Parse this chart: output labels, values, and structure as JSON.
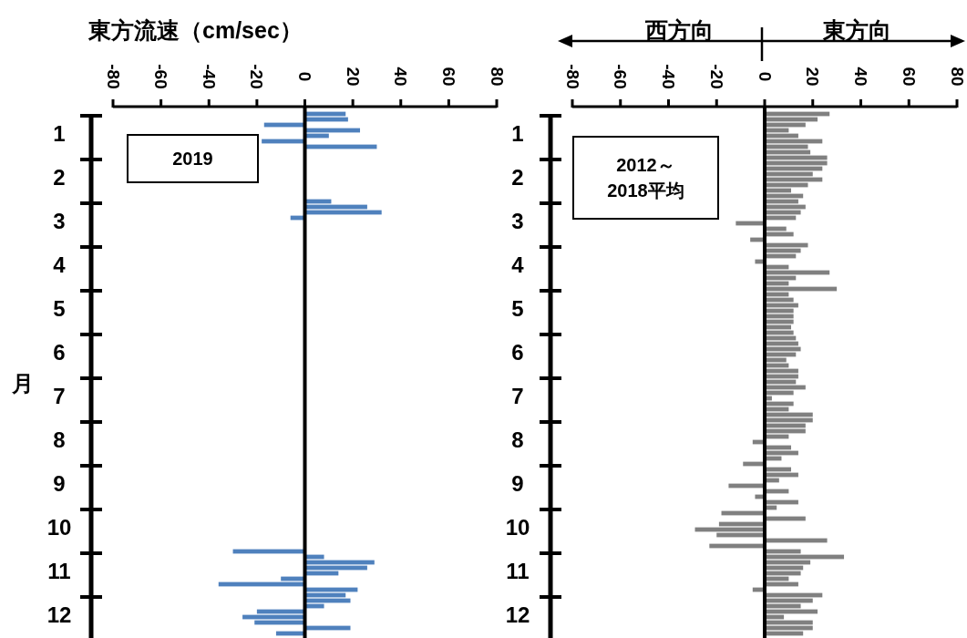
{
  "chart_data": [
    {
      "type": "bar",
      "orientation": "horizontal",
      "title": "東方流速（cm/sec）",
      "ylabel": "月",
      "categories": [
        null,
        null,
        null,
        null,
        "1",
        null,
        null,
        null,
        null,
        null,
        null,
        null,
        "2",
        null,
        null,
        null,
        null,
        null,
        null,
        null,
        "3",
        null,
        null,
        null,
        null,
        null,
        null,
        null,
        "4",
        null,
        null,
        null,
        null,
        null,
        null,
        null,
        "5",
        null,
        null,
        null,
        null,
        null,
        null,
        null,
        "6",
        null,
        null,
        null,
        null,
        null,
        null,
        null,
        "7",
        null,
        null,
        null,
        null,
        null,
        null,
        null,
        "8",
        null,
        null,
        null,
        null,
        null,
        null,
        null,
        "9",
        null,
        null,
        null,
        null,
        null,
        null,
        null,
        "10",
        null,
        null,
        null,
        null,
        null,
        null,
        null,
        "11",
        null,
        null,
        null,
        null,
        null,
        null,
        null,
        "12",
        null,
        null,
        null
      ],
      "series": [
        {
          "color": "#4f81bd",
          "values": [
            17,
            18,
            -17,
            23,
            10,
            -18,
            30,
            null,
            null,
            null,
            null,
            null,
            null,
            null,
            null,
            null,
            11,
            26,
            32,
            -6,
            null,
            null,
            null,
            null,
            null,
            null,
            null,
            null,
            null,
            null,
            null,
            null,
            null,
            null,
            null,
            null,
            null,
            null,
            null,
            null,
            null,
            null,
            null,
            null,
            null,
            null,
            null,
            null,
            null,
            null,
            null,
            null,
            null,
            null,
            null,
            null,
            null,
            null,
            null,
            null,
            null,
            null,
            null,
            null,
            null,
            null,
            null,
            null,
            null,
            null,
            null,
            null,
            null,
            null,
            null,
            null,
            null,
            null,
            null,
            null,
            -30,
            8,
            29,
            26,
            14,
            -10,
            -36,
            22,
            17,
            19,
            8,
            -20,
            -26,
            -21,
            19,
            -12
          ]
        }
      ],
      "xlim": [
        -80,
        80
      ],
      "xticks": [
        -80,
        -60,
        -40,
        -20,
        0,
        20,
        40,
        60,
        80
      ],
      "ref_lines": [
        {
          "axis": "x",
          "value": 0,
          "color": "#000000"
        }
      ],
      "annotations": [
        "2019"
      ],
      "grid": false
    },
    {
      "type": "bar",
      "orientation": "horizontal",
      "categories": [
        null,
        null,
        null,
        null,
        "1",
        null,
        null,
        null,
        null,
        null,
        null,
        null,
        "2",
        null,
        null,
        null,
        null,
        null,
        null,
        null,
        "3",
        null,
        null,
        null,
        null,
        null,
        null,
        null,
        "4",
        null,
        null,
        null,
        null,
        null,
        null,
        null,
        "5",
        null,
        null,
        null,
        null,
        null,
        null,
        null,
        "6",
        null,
        null,
        null,
        null,
        null,
        null,
        null,
        "7",
        null,
        null,
        null,
        null,
        null,
        null,
        null,
        "8",
        null,
        null,
        null,
        null,
        null,
        null,
        null,
        "9",
        null,
        null,
        null,
        null,
        null,
        null,
        null,
        "10",
        null,
        null,
        null,
        null,
        null,
        null,
        null,
        "11",
        null,
        null,
        null,
        null,
        null,
        null,
        null,
        "12",
        null,
        null,
        null
      ],
      "series": [
        {
          "color": "#808080",
          "values": [
            27,
            22,
            17,
            10,
            14,
            24,
            18,
            19,
            26,
            26,
            24,
            20,
            24,
            18,
            11,
            16,
            14,
            17,
            15,
            13,
            -12,
            9,
            12,
            -6,
            18,
            15,
            13,
            -4,
            10,
            27,
            13,
            10,
            30,
            10,
            12,
            14,
            12,
            12,
            12,
            11,
            12,
            13,
            14,
            15,
            13,
            9,
            10,
            14,
            14,
            13,
            17,
            12,
            3,
            12,
            10,
            20,
            20,
            17,
            17,
            10,
            -5,
            11,
            14,
            7,
            -9,
            11,
            14,
            6,
            -15,
            10,
            -4,
            14,
            5,
            -18,
            17,
            -19,
            -29,
            -20,
            26,
            -23,
            15,
            33,
            19,
            16,
            15,
            10,
            14,
            -5,
            24,
            20,
            15,
            22,
            8,
            20,
            20,
            16
          ]
        }
      ],
      "xlim": [
        -80,
        80
      ],
      "xticks": [
        -80,
        -60,
        -40,
        -20,
        0,
        20,
        40,
        60,
        80
      ],
      "ref_lines": [
        {
          "axis": "x",
          "value": 0,
          "color": "#000000"
        }
      ],
      "annotations": [
        "西方向",
        "東方向",
        "2012～\n2018平均"
      ],
      "grid": false
    }
  ]
}
